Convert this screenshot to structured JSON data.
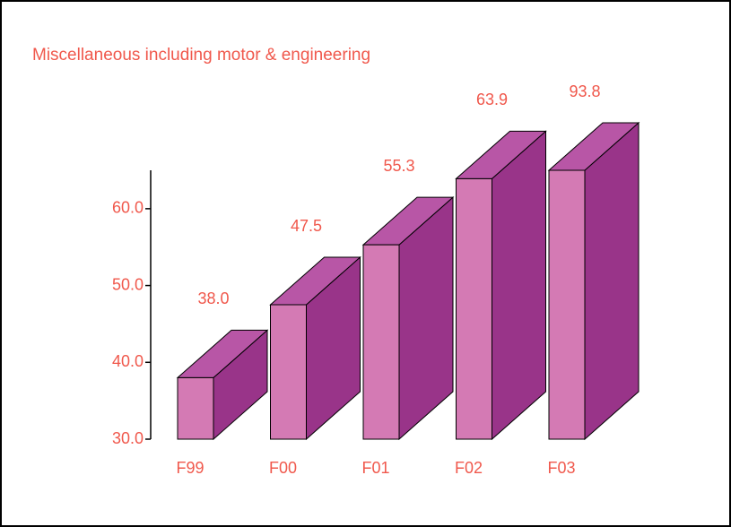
{
  "chart_data": {
    "type": "bar3d",
    "title": "Miscellaneous including motor & engineering",
    "categories": [
      "F99",
      "F00",
      "F01",
      "F02",
      "F03"
    ],
    "values": [
      38.0,
      47.5,
      55.3,
      63.9,
      93.8
    ],
    "value_labels": [
      "38.0",
      "47.5",
      "55.3",
      "63.9",
      "93.8"
    ],
    "colors": {
      "front": "#d47ab4",
      "top": "#b856a6",
      "side": "#993489"
    },
    "ylim": [
      30,
      65
    ],
    "yticks": [
      {
        "value": 30,
        "label": "30.0"
      },
      {
        "value": 40,
        "label": "40.0"
      },
      {
        "value": 50,
        "label": "50.0"
      },
      {
        "value": 60,
        "label": "60.0"
      }
    ]
  }
}
